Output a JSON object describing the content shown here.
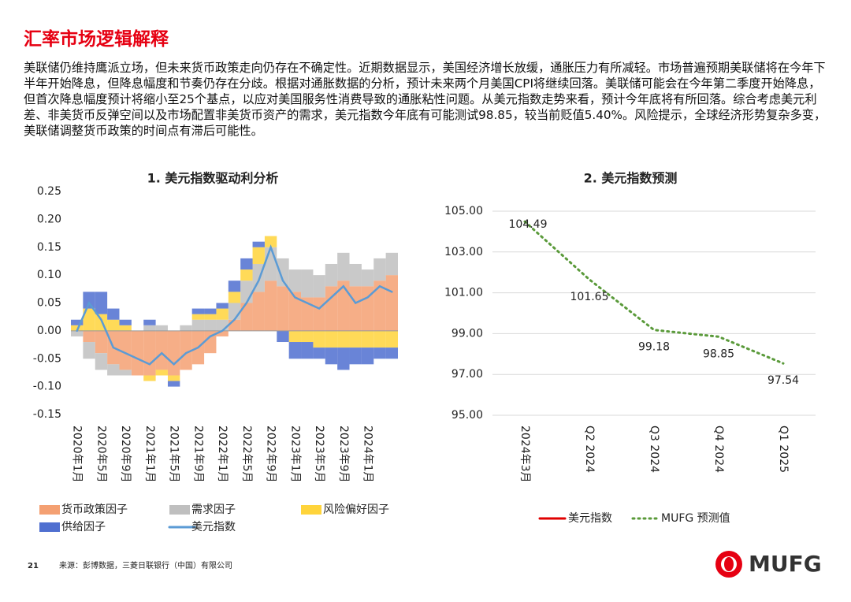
{
  "header": {
    "title": "汇率市场逻辑解释"
  },
  "body": "美联储仍维持鹰派立场，但未来货币政策走向仍存在不确定性。近期数据显示，美国经济增长放缓，通胀压力有所减轻。市场普遍预期美联储将在今年下半年开始降息，但降息幅度和节奏仍存在分歧。根据对通胀数据的分析，预计未来两个月美国CPI将继续回落。美联储可能会在今年第二季度开始降息，但首次降息幅度预计将缩小至25个基点，以应对美国服务性消费导致的通胀粘性问题。从美元指数走势来看，预计今年底将有所回落。综合考虑美元利差、非美货币反弹空间以及市场配置非美货币资产的需求，美元指数今年底有可能测试98.85，较当前贬值5.40%。风险提示，全球经济形势复杂多变，美联储调整货币政策的时间点有滞后可能性。",
  "footer": {
    "page": "21",
    "source": "来源：彭博数据，三菱日联银行（中国）有限公司",
    "logo": "MUFG"
  },
  "chart_data": [
    {
      "type": "bar",
      "title": "1. 美元指数驱动利分析",
      "categories": [
        "2020年1月",
        null,
        "2020年5月",
        null,
        "2020年9月",
        null,
        "2021年1月",
        null,
        "2021年5月",
        null,
        "2021年9月",
        null,
        "2022年1月",
        null,
        "2022年5月",
        null,
        "2022年9月",
        null,
        "2023年1月",
        null,
        "2023年5月",
        null,
        "2023年9月",
        null,
        "2024年1月",
        null,
        null
      ],
      "series": [
        {
          "name": "货币政策因子",
          "color": "#f4a072",
          "values": [
            0,
            -0.02,
            -0.04,
            -0.06,
            -0.07,
            -0.08,
            -0.08,
            -0.07,
            -0.08,
            -0.07,
            -0.06,
            -0.04,
            -0.01,
            0.02,
            0.05,
            0.07,
            0.09,
            0.08,
            0.07,
            0.06,
            0.06,
            0.08,
            0.09,
            0.08,
            0.08,
            0.09,
            0.1
          ]
        },
        {
          "name": "需求因子",
          "color": "#bfbfbf",
          "values": [
            -0.01,
            -0.03,
            -0.03,
            -0.02,
            -0.01,
            0,
            0.01,
            0.01,
            0,
            0.01,
            0.02,
            0.02,
            0.02,
            0.03,
            0.04,
            0.05,
            0.06,
            0.05,
            0.04,
            0.05,
            0.04,
            0.04,
            0.05,
            0.04,
            0.03,
            0.04,
            0.04
          ]
        },
        {
          "name": "风险偏好因子",
          "color": "#ffd43b",
          "values": [
            0.01,
            0.04,
            0.03,
            0.02,
            0.01,
            0,
            -0.01,
            -0.01,
            -0.01,
            0,
            0.01,
            0.01,
            0.02,
            0.02,
            0.02,
            0.03,
            0.02,
            0,
            -0.02,
            -0.02,
            -0.03,
            -0.03,
            -0.03,
            -0.03,
            -0.03,
            -0.03,
            -0.03
          ]
        },
        {
          "name": "供给因子",
          "color": "#4f6fd0",
          "values": [
            0.01,
            0.03,
            0.04,
            0.02,
            0.01,
            0,
            0.01,
            0,
            -0.01,
            0,
            0.01,
            0.01,
            0.01,
            0.02,
            0.02,
            0.01,
            0,
            -0.02,
            -0.03,
            -0.03,
            -0.02,
            -0.03,
            -0.04,
            -0.03,
            -0.03,
            -0.02,
            -0.02
          ]
        },
        {
          "name": "美元指数",
          "color": "#5b9bd5",
          "type": "line",
          "values": [
            0,
            0.05,
            0.02,
            -0.03,
            -0.04,
            -0.05,
            -0.06,
            -0.04,
            -0.06,
            -0.04,
            -0.03,
            -0.01,
            0,
            0.02,
            0.05,
            0.09,
            0.15,
            0.09,
            0.06,
            0.05,
            0.04,
            0.06,
            0.08,
            0.05,
            0.06,
            0.08,
            0.07
          ]
        }
      ],
      "ylim": [
        -0.15,
        0.25
      ],
      "yticks": [
        {
          "value": 0.25,
          "label": "0.25"
        },
        {
          "value": 0.2,
          "label": "0.20"
        },
        {
          "value": 0.15,
          "label": "0.15"
        },
        {
          "value": 0.1,
          "label": "0.10"
        },
        {
          "value": 0.05,
          "label": "0.05"
        },
        {
          "value": 0,
          "label": "0.00"
        },
        {
          "value": -0.05,
          "label": "-0.05"
        },
        {
          "value": -0.1,
          "label": "-0.10"
        },
        {
          "value": -0.15,
          "label": "-0.15"
        }
      ],
      "grid": false
    },
    {
      "type": "line",
      "title": "2. 美元指数预测",
      "categories": [
        "2024年3月",
        "Q2 2024",
        "Q3 2024",
        "Q4 2024",
        "Q1 2025"
      ],
      "series": [
        {
          "name": "美元指数",
          "color": "#e00000",
          "values": [
            104.49,
            null,
            null,
            null,
            null
          ]
        },
        {
          "name": "MUFG 预测值",
          "color": "#5a9a3a",
          "dashed": true,
          "values": [
            104.49,
            101.65,
            99.18,
            98.85,
            97.54
          ]
        }
      ],
      "ylim": [
        95,
        105
      ],
      "yticks": [
        {
          "value": 105,
          "label": "105.00"
        },
        {
          "value": 103,
          "label": "103.00"
        },
        {
          "value": 101,
          "label": "101.00"
        },
        {
          "value": 99,
          "label": "99.00"
        },
        {
          "value": 97,
          "label": "97.00"
        },
        {
          "value": 95,
          "label": "95.00"
        }
      ],
      "grid": true
    }
  ]
}
